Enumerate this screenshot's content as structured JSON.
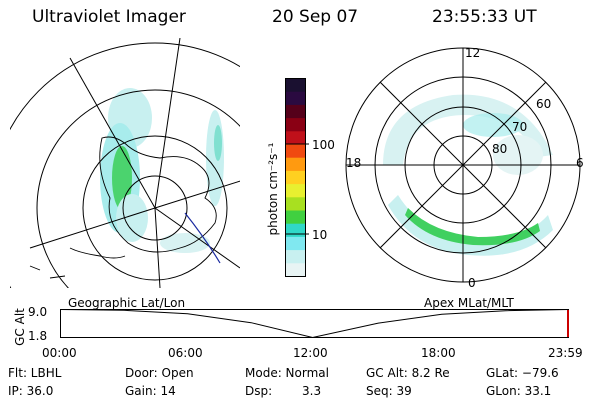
{
  "header": {
    "instrument": "Ultraviolet Imager",
    "date": "20 Sep 07",
    "time": "23:55:33 UT"
  },
  "geo_panel": {
    "caption": "Geographic Lat/Lon"
  },
  "apex_panel": {
    "caption": "Apex MLat/MLT",
    "mlt_labels": [
      "12",
      "18",
      "6",
      "0"
    ],
    "mlat_labels": [
      "60",
      "70",
      "80"
    ]
  },
  "colorbar": {
    "label": "photon cm⁻²s⁻¹",
    "ticks": [
      "100",
      "10"
    ],
    "colors": [
      "#1a1030",
      "#2a0a40",
      "#55001a",
      "#8a0014",
      "#c0101a",
      "#f04a10",
      "#ff9a10",
      "#ffd020",
      "#e8f030",
      "#a8e020",
      "#40d040",
      "#30d8c8",
      "#80e8f0",
      "#c8f0f0",
      "#e8f4f4"
    ]
  },
  "timeline": {
    "ylabel": "GC Alt",
    "y_ticks": [
      "9.0",
      "1.8"
    ],
    "x_ticks": [
      "00:00",
      "06:00",
      "12:00",
      "18:00",
      "23:59"
    ]
  },
  "status": {
    "filter": "Flt: LBHL",
    "ip": "IP: 36.0",
    "door": "Door: Open",
    "gain": "Gain: 14",
    "mode": "Mode: Normal",
    "dsp_label": "Dsp:",
    "dsp_value": "3.3",
    "gc_alt": "GC Alt: 8.2 Re",
    "seq": "Seq: 39",
    "glat": "GLat: −79.6",
    "glon": "GLon:  33.1"
  },
  "chart_data": {
    "type": "line",
    "title": "",
    "xlabel": "",
    "ylabel": "GC Alt",
    "x": [
      0,
      3,
      6,
      9,
      11.9,
      15,
      18,
      21,
      23.98
    ],
    "series": [
      {
        "values": [
          9.0,
          8.8,
          7.9,
          5.6,
          1.8,
          5.5,
          7.8,
          8.7,
          9.0
        ]
      }
    ],
    "xlim": [
      0,
      23.98
    ],
    "ylim": [
      1.8,
      9.0
    ],
    "grid": false
  }
}
